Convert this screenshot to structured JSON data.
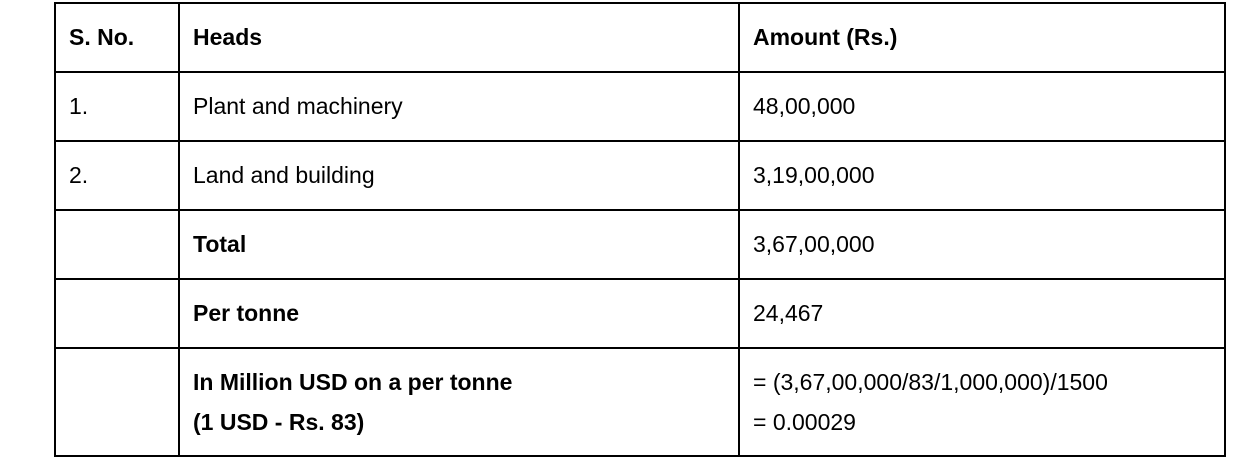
{
  "table": {
    "headers": [
      "S. No.",
      "Heads",
      "Amount (Rs.)"
    ],
    "rows": [
      {
        "sno": "1.",
        "head": "Plant and machinery",
        "amount": "48,00,000"
      },
      {
        "sno": "2.",
        "head": "Land and building",
        "amount": "3,19,00,000"
      },
      {
        "sno": "",
        "head": "Total",
        "amount": "3,67,00,000"
      },
      {
        "sno": "",
        "head": "Per tonne",
        "amount": "24,467"
      },
      {
        "sno": "",
        "head_line1": "In Million USD on a per tonne",
        "head_line2": "(1 USD - Rs. 83)",
        "amount_line1": "= (3,67,00,000/83/1,000,000)/1500",
        "amount_line2": "= 0.00029"
      }
    ]
  }
}
